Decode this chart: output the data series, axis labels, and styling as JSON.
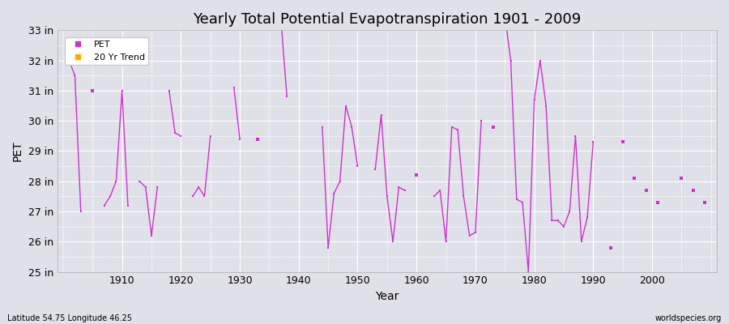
{
  "title": "Yearly Total Potential Evapotranspiration 1901 - 2009",
  "xlabel": "Year",
  "ylabel": "PET",
  "ylim": [
    25,
    33
  ],
  "yticks": [
    25,
    26,
    27,
    28,
    29,
    30,
    31,
    32,
    33
  ],
  "ytick_labels": [
    "25 in",
    "26 in",
    "27 in",
    "28 in",
    "29 in",
    "30 in",
    "31 in",
    "32 in",
    "33 in"
  ],
  "xlim": [
    1899,
    2011
  ],
  "xticks": [
    1910,
    1920,
    1930,
    1940,
    1950,
    1960,
    1970,
    1980,
    1990,
    2000
  ],
  "background_color": "#e0e0e8",
  "plot_bg_color": "#e0e0e8",
  "line_color": "#cc33cc",
  "trend_color": "#ffaa00",
  "grid_color": "#ffffff",
  "title_fontsize": 13,
  "footnote_left": "Latitude 54.75 Longitude 46.25",
  "footnote_right": "worldspecies.org",
  "pet_data": [
    [
      1901,
      32.0
    ],
    [
      1902,
      31.5
    ],
    [
      1903,
      27.0
    ],
    [
      1905,
      31.0
    ],
    [
      1907,
      27.2
    ],
    [
      1908,
      27.5
    ],
    [
      1909,
      28.0
    ],
    [
      1910,
      31.0
    ],
    [
      1911,
      27.2
    ],
    [
      1913,
      28.0
    ],
    [
      1914,
      27.8
    ],
    [
      1915,
      26.2
    ],
    [
      1916,
      27.8
    ],
    [
      1918,
      31.0
    ],
    [
      1919,
      29.6
    ],
    [
      1920,
      29.5
    ],
    [
      1922,
      27.5
    ],
    [
      1923,
      27.8
    ],
    [
      1924,
      27.5
    ],
    [
      1925,
      29.5
    ],
    [
      1929,
      31.1
    ],
    [
      1930,
      29.4
    ],
    [
      1933,
      29.4
    ],
    [
      1937,
      33.3
    ],
    [
      1938,
      30.8
    ],
    [
      1944,
      29.8
    ],
    [
      1945,
      25.8
    ],
    [
      1946,
      27.6
    ],
    [
      1947,
      28.0
    ],
    [
      1948,
      30.5
    ],
    [
      1949,
      29.8
    ],
    [
      1950,
      28.5
    ],
    [
      1953,
      28.4
    ],
    [
      1954,
      30.2
    ],
    [
      1955,
      27.5
    ],
    [
      1956,
      26.0
    ],
    [
      1957,
      27.8
    ],
    [
      1958,
      27.7
    ],
    [
      1960,
      28.2
    ],
    [
      1963,
      27.5
    ],
    [
      1964,
      27.7
    ],
    [
      1965,
      26.0
    ],
    [
      1966,
      29.8
    ],
    [
      1967,
      29.7
    ],
    [
      1968,
      27.5
    ],
    [
      1969,
      26.2
    ],
    [
      1970,
      26.3
    ],
    [
      1971,
      30.0
    ],
    [
      1973,
      29.8
    ],
    [
      1975,
      33.5
    ],
    [
      1976,
      32.0
    ],
    [
      1977,
      27.4
    ],
    [
      1978,
      27.3
    ],
    [
      1979,
      25.0
    ],
    [
      1980,
      30.7
    ],
    [
      1981,
      32.0
    ],
    [
      1982,
      30.5
    ],
    [
      1983,
      26.7
    ],
    [
      1984,
      26.7
    ],
    [
      1985,
      26.5
    ],
    [
      1986,
      27.0
    ],
    [
      1987,
      29.5
    ],
    [
      1988,
      26.0
    ],
    [
      1989,
      26.8
    ],
    [
      1990,
      29.3
    ],
    [
      1993,
      25.8
    ],
    [
      1995,
      29.3
    ],
    [
      1997,
      28.1
    ],
    [
      1999,
      27.7
    ],
    [
      2001,
      27.3
    ],
    [
      2005,
      28.1
    ],
    [
      2007,
      27.7
    ],
    [
      2009,
      27.3
    ]
  ]
}
